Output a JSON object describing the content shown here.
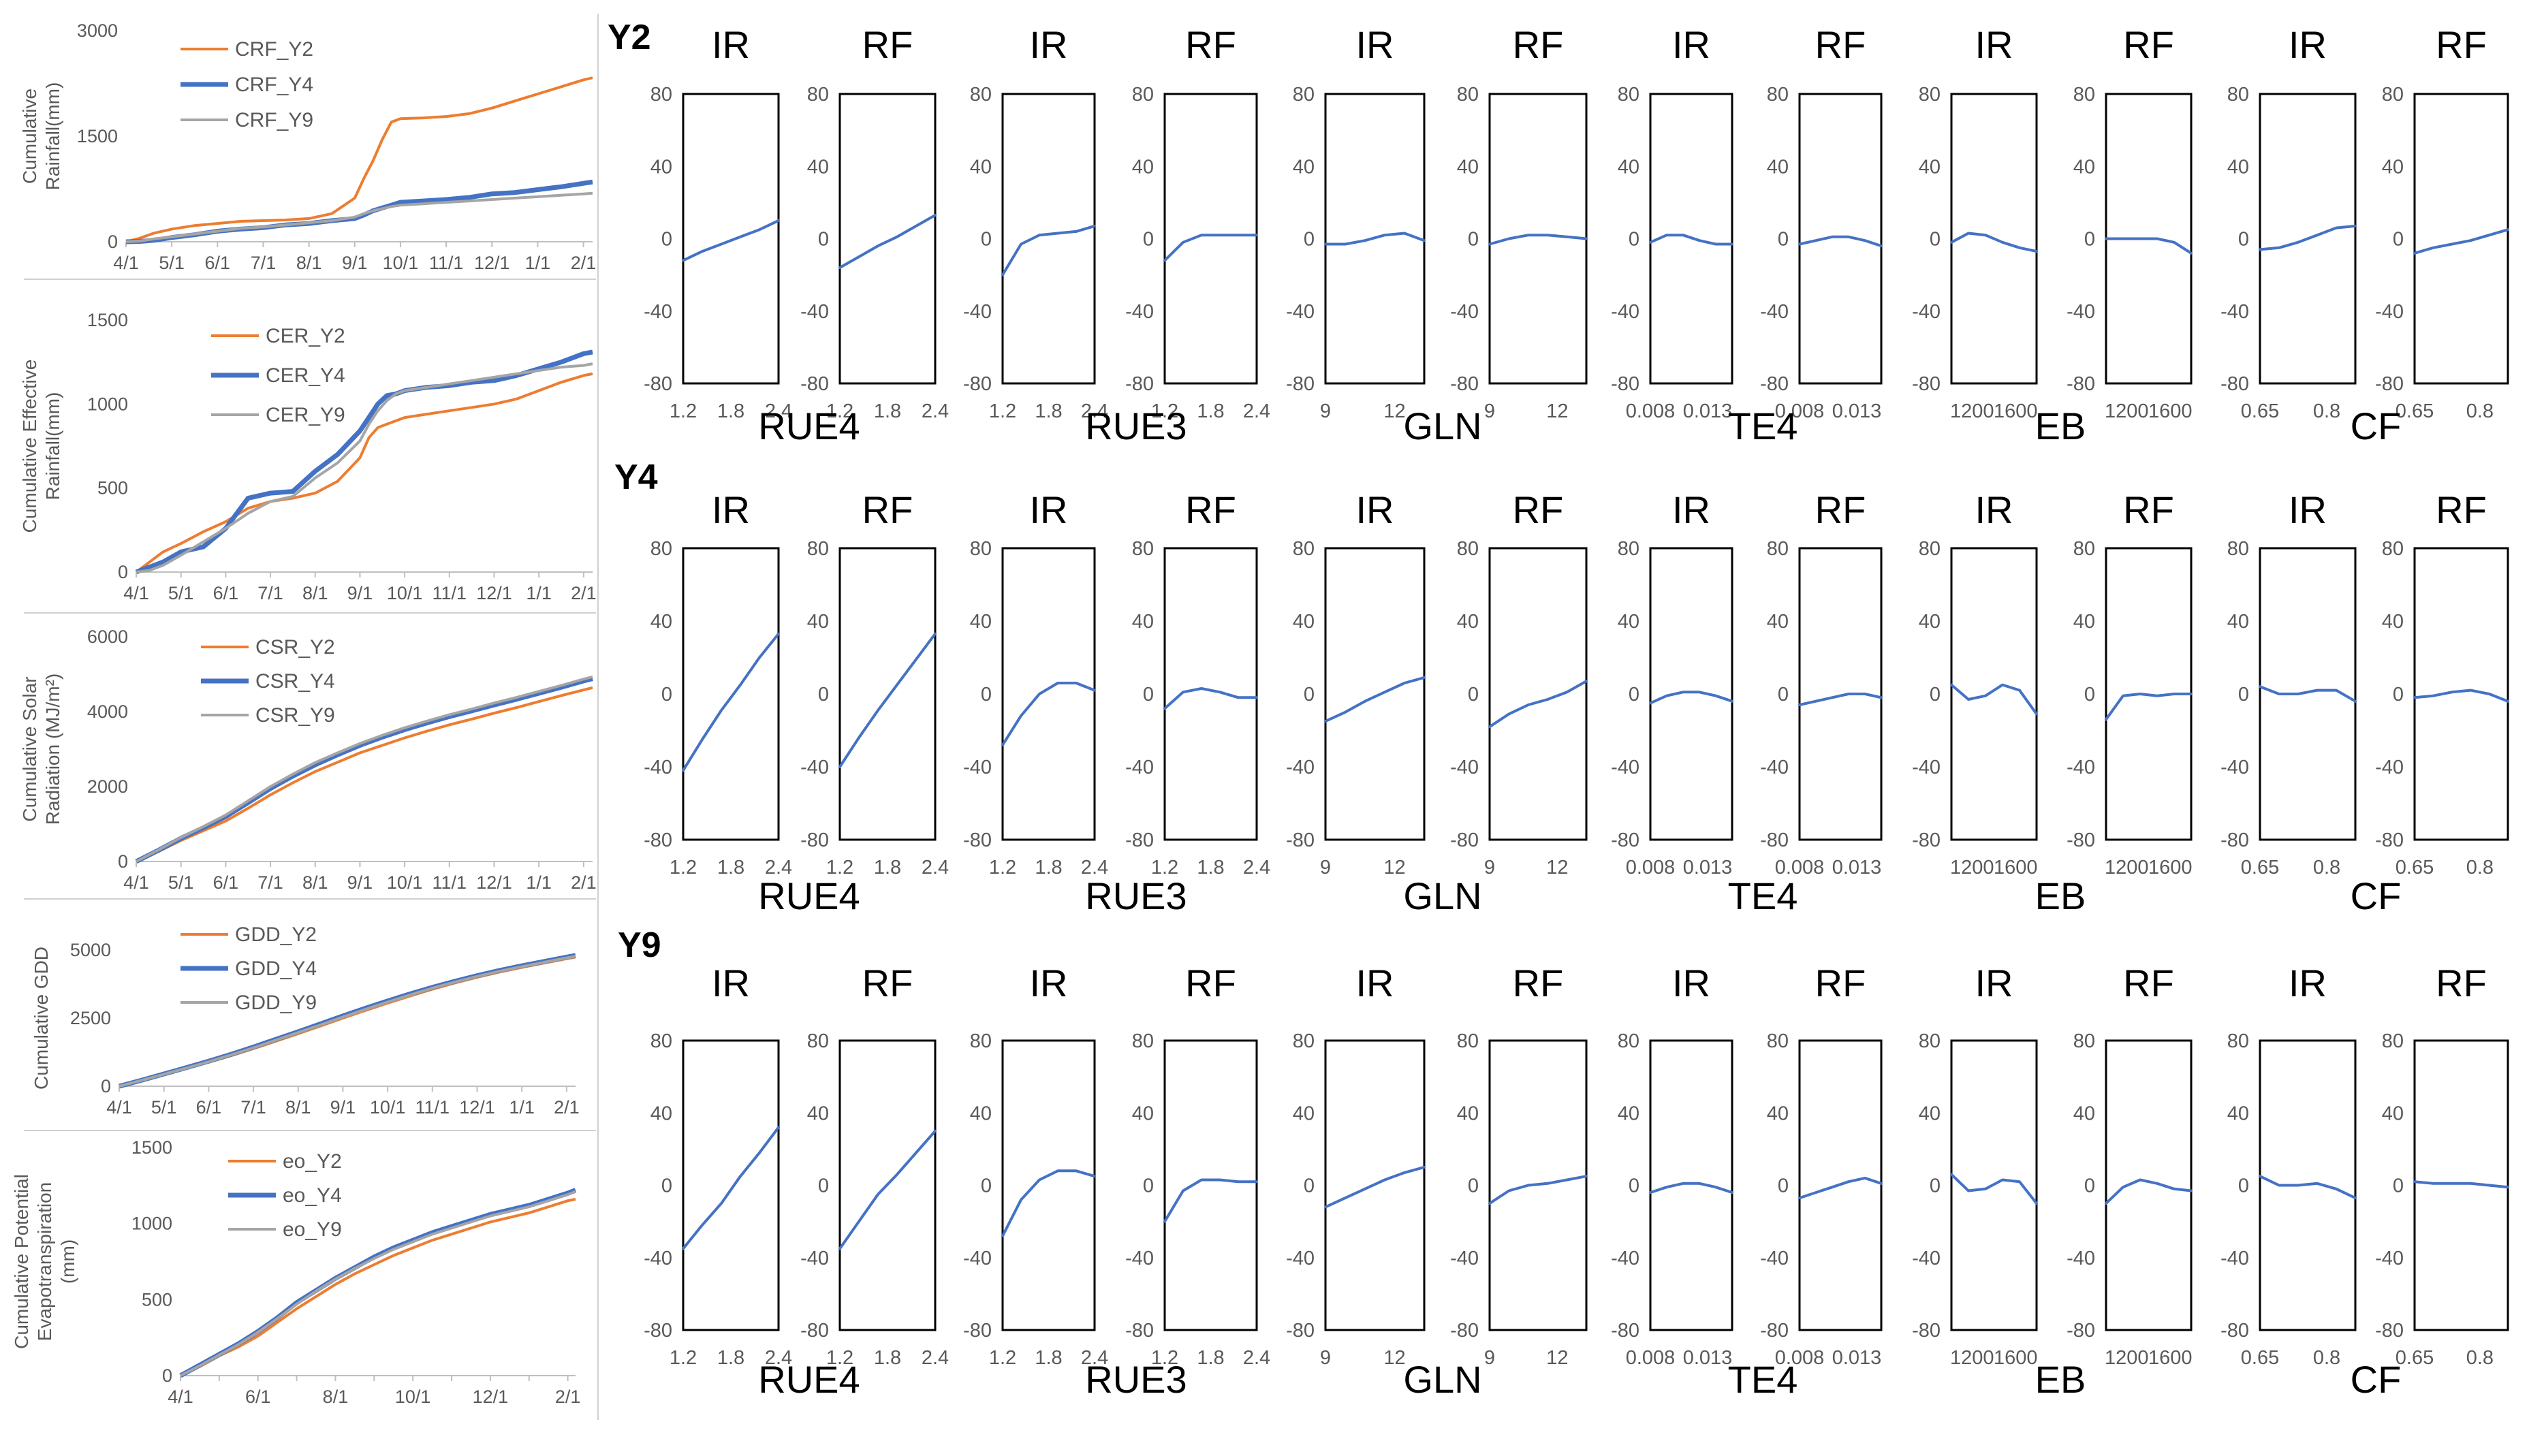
{
  "colors": {
    "y2": "#ED7D31",
    "y4": "#4472C4",
    "y9": "#A5A5A5",
    "curve": "#4472C4",
    "axis": "#595959",
    "frame": "#000000",
    "text": "#000000",
    "tick_text": "#595959"
  },
  "chart_data": {
    "left_panels": [
      {
        "type": "line",
        "ylabel": [
          "Cumulative",
          "Rainfall(mm)"
        ],
        "ylim": [
          0,
          3000
        ],
        "yticks": [
          "0",
          "1500",
          "3000"
        ],
        "xticks": [
          "4/1",
          "5/1",
          "6/1",
          "7/1",
          "8/1",
          "9/1",
          "10/1",
          "11/1",
          "12/1",
          "1/1",
          "2/1"
        ],
        "x": [
          0,
          0.3,
          0.6,
          1,
          1.5,
          2,
          2.5,
          3,
          3.5,
          4,
          4.5,
          5,
          5.2,
          5.4,
          5.6,
          5.8,
          6,
          6.5,
          7,
          7.5,
          8,
          8.5,
          9,
          9.5,
          10,
          10.2
        ],
        "series": [
          {
            "name": "CRF_Y2",
            "values": [
              0,
              50,
              120,
              180,
              230,
              260,
              290,
              300,
              310,
              330,
              400,
              620,
              900,
              1150,
              1450,
              1700,
              1750,
              1760,
              1780,
              1820,
              1900,
              2000,
              2100,
              2200,
              2300,
              2330
            ]
          },
          {
            "name": "CRF_Y4",
            "values": [
              0,
              5,
              20,
              60,
              100,
              150,
              180,
              200,
              240,
              260,
              300,
              330,
              380,
              440,
              480,
              520,
              560,
              580,
              600,
              630,
              680,
              700,
              740,
              780,
              830,
              850
            ]
          },
          {
            "name": "CRF_Y9",
            "values": [
              0,
              10,
              40,
              70,
              110,
              150,
              190,
              210,
              240,
              270,
              300,
              350,
              400,
              440,
              470,
              500,
              520,
              540,
              560,
              580,
              600,
              620,
              640,
              660,
              680,
              690
            ]
          }
        ]
      },
      {
        "type": "line",
        "ylabel": [
          "Cumulative Effective",
          "Rainfall(mm)"
        ],
        "ylim": [
          0,
          1500
        ],
        "yticks": [
          "0",
          "500",
          "1000",
          "1500"
        ],
        "xticks": [
          "4/1",
          "5/1",
          "6/1",
          "7/1",
          "8/1",
          "9/1",
          "10/1",
          "11/1",
          "12/1",
          "1/1",
          "2/1"
        ],
        "x": [
          0,
          0.3,
          0.6,
          1,
          1.5,
          2,
          2.5,
          3,
          3.5,
          4,
          4.5,
          5,
          5.2,
          5.4,
          5.6,
          5.8,
          6,
          6.5,
          7,
          7.5,
          8,
          8.5,
          9,
          9.5,
          10,
          10.2
        ],
        "series": [
          {
            "name": "CER_Y2",
            "values": [
              0,
              60,
              120,
              170,
              240,
              300,
              380,
              420,
              440,
              470,
              540,
              680,
              800,
              860,
              880,
              900,
              920,
              940,
              960,
              980,
              1000,
              1030,
              1080,
              1130,
              1170,
              1180
            ]
          },
          {
            "name": "CER_Y4",
            "values": [
              0,
              30,
              60,
              120,
              150,
              260,
              440,
              470,
              480,
              600,
              700,
              840,
              920,
              1000,
              1050,
              1060,
              1080,
              1100,
              1110,
              1130,
              1140,
              1170,
              1210,
              1250,
              1300,
              1310
            ]
          },
          {
            "name": "CER_Y9",
            "values": [
              0,
              10,
              40,
              100,
              180,
              260,
              350,
              420,
              450,
              560,
              650,
              780,
              880,
              960,
              1020,
              1060,
              1080,
              1100,
              1120,
              1140,
              1160,
              1180,
              1200,
              1220,
              1230,
              1240
            ]
          }
        ]
      },
      {
        "type": "line",
        "ylabel": [
          "Cumulative Solar",
          "Radiation (MJ/m²)"
        ],
        "ylim": [
          0,
          6000
        ],
        "yticks": [
          "0",
          "2000",
          "4000",
          "6000"
        ],
        "xticks": [
          "4/1",
          "5/1",
          "6/1",
          "7/1",
          "8/1",
          "9/1",
          "10/1",
          "11/1",
          "12/1",
          "1/1",
          "2/1"
        ],
        "x": [
          0,
          0.5,
          1,
          1.5,
          2,
          2.5,
          3,
          3.5,
          4,
          4.5,
          5,
          5.5,
          6,
          6.5,
          7,
          7.5,
          8,
          8.5,
          9,
          9.5,
          10,
          10.2
        ],
        "series": [
          {
            "name": "CSR_Y2",
            "values": [
              0,
              270,
              560,
              820,
              1080,
              1420,
              1780,
              2100,
              2400,
              2650,
              2900,
              3100,
              3300,
              3480,
              3650,
              3800,
              3960,
              4110,
              4270,
              4430,
              4580,
              4640
            ]
          },
          {
            "name": "CSR_Y4",
            "values": [
              0,
              300,
              620,
              900,
              1200,
              1570,
              1950,
              2280,
              2580,
              2850,
              3100,
              3320,
              3520,
              3700,
              3870,
              4020,
              4180,
              4330,
              4490,
              4650,
              4820,
              4880
            ]
          },
          {
            "name": "CSR_Y9",
            "values": [
              0,
              310,
              640,
              930,
              1240,
              1620,
              2000,
              2330,
              2640,
              2900,
              3150,
              3370,
              3570,
              3750,
              3920,
              4070,
              4230,
              4380,
              4540,
              4700,
              4870,
              4930
            ]
          }
        ]
      },
      {
        "type": "line",
        "ylabel": [
          "Cumulative GDD"
        ],
        "ylim": [
          0,
          5000
        ],
        "yticks": [
          "0",
          "2500",
          "5000"
        ],
        "xticks": [
          "4/1",
          "5/1",
          "6/1",
          "7/1",
          "8/1",
          "9/1",
          "10/1",
          "11/1",
          "12/1",
          "1/1",
          "2/1"
        ],
        "x": [
          0,
          0.5,
          1,
          1.5,
          2,
          2.5,
          3,
          3.5,
          4,
          4.5,
          5,
          5.5,
          6,
          6.5,
          7,
          7.5,
          8,
          8.5,
          9,
          9.5,
          10,
          10.2
        ],
        "series": [
          {
            "name": "GDD_Y2",
            "values": [
              0,
              210,
              430,
              650,
              880,
              1120,
              1380,
              1650,
              1930,
              2210,
              2500,
              2780,
              3050,
              3310,
              3560,
              3790,
              4000,
              4190,
              4360,
              4520,
              4680,
              4740
            ]
          },
          {
            "name": "GDD_Y4",
            "values": [
              0,
              220,
              450,
              680,
              920,
              1170,
              1440,
              1720,
              2000,
              2290,
              2580,
              2860,
              3130,
              3390,
              3630,
              3850,
              4060,
              4250,
              4420,
              4580,
              4740,
              4800
            ]
          },
          {
            "name": "GDD_Y9",
            "values": [
              0,
              215,
              440,
              665,
              900,
              1150,
              1410,
              1690,
              1970,
              2250,
              2540,
              2820,
              3090,
              3350,
              3600,
              3820,
              4030,
              4220,
              4390,
              4550,
              4710,
              4770
            ]
          }
        ]
      },
      {
        "type": "line",
        "ylabel": [
          "Cumulative Potential",
          "Evapotranspiration",
          "(mm)"
        ],
        "ylim": [
          0,
          1500
        ],
        "yticks": [
          "0",
          "500",
          "1000",
          "1500"
        ],
        "xticks": [
          "4/1",
          "6/1",
          "8/1",
          "10/1",
          "12/1",
          "2/1"
        ],
        "x": [
          0,
          0.5,
          1,
          1.5,
          2,
          2.5,
          3,
          3.5,
          4,
          4.5,
          5,
          5.5,
          6,
          6.5,
          7,
          7.5,
          8,
          8.5,
          9,
          9.5,
          10,
          10.2
        ],
        "series": [
          {
            "name": "eo_Y2",
            "values": [
              0,
              60,
              130,
              190,
              260,
              350,
              440,
              520,
              600,
              670,
              730,
              790,
              840,
              890,
              930,
              970,
              1010,
              1040,
              1070,
              1110,
              1150,
              1160
            ]
          },
          {
            "name": "eo_Y4",
            "values": [
              0,
              70,
              140,
              210,
              290,
              380,
              480,
              560,
              640,
              710,
              780,
              840,
              890,
              940,
              980,
              1020,
              1060,
              1090,
              1120,
              1160,
              1200,
              1220
            ]
          },
          {
            "name": "eo_Y9",
            "values": [
              0,
              65,
              135,
              205,
              285,
              375,
              470,
              555,
              635,
              705,
              770,
              830,
              880,
              930,
              970,
              1010,
              1050,
              1080,
              1110,
              1150,
              1190,
              1210
            ]
          }
        ]
      }
    ],
    "sensitivity": {
      "type": "line",
      "ylim": [
        -80,
        80
      ],
      "yticks": [
        "80",
        "40",
        "0",
        "-40",
        "-80"
      ],
      "subplot_titles": [
        "IR",
        "RF"
      ],
      "parameters": [
        {
          "name": "RUE4",
          "xticks": [
            "1.2",
            "1.8",
            "2.4"
          ]
        },
        {
          "name": "RUE3",
          "xticks": [
            "1.2",
            "1.8",
            "2.4"
          ]
        },
        {
          "name": "GLN",
          "xticks": [
            "9",
            "12"
          ]
        },
        {
          "name": "TE4",
          "xticks": [
            "0.008",
            "0.013"
          ]
        },
        {
          "name": "EB",
          "xticks": [
            "1200",
            "1600"
          ]
        },
        {
          "name": "CF",
          "xticks": [
            "0.65",
            "0.8"
          ]
        }
      ],
      "rows": [
        {
          "label": "Y2",
          "curves": [
            [
              -12,
              -7,
              -3,
              1,
              5,
              10
            ],
            [
              -16,
              -10,
              -4,
              1,
              7,
              13
            ],
            [
              -20,
              -3,
              2,
              3,
              4,
              7
            ],
            [
              -12,
              -2,
              2,
              2,
              2,
              2
            ],
            [
              -3,
              -3,
              -1,
              2,
              3,
              -1
            ],
            [
              -3,
              0,
              2,
              2,
              1,
              0
            ],
            [
              -2,
              2,
              2,
              -1,
              -3,
              -3
            ],
            [
              -3,
              -1,
              1,
              1,
              -1,
              -4
            ],
            [
              -2,
              3,
              2,
              -2,
              -5,
              -7
            ],
            [
              0,
              0,
              0,
              0,
              -2,
              -8
            ],
            [
              -6,
              -5,
              -2,
              2,
              6,
              7
            ],
            [
              -8,
              -5,
              -3,
              -1,
              2,
              5
            ]
          ]
        },
        {
          "label": "Y4",
          "curves": [
            [
              -42,
              -25,
              -9,
              5,
              20,
              33
            ],
            [
              -40,
              -24,
              -9,
              5,
              19,
              33
            ],
            [
              -28,
              -12,
              0,
              6,
              6,
              2
            ],
            [
              -8,
              1,
              3,
              1,
              -2,
              -2
            ],
            [
              -15,
              -10,
              -4,
              1,
              6,
              9
            ],
            [
              -18,
              -11,
              -6,
              -3,
              1,
              7
            ],
            [
              -5,
              -1,
              1,
              1,
              -1,
              -4
            ],
            [
              -6,
              -4,
              -2,
              0,
              0,
              -2
            ],
            [
              5,
              -3,
              -1,
              5,
              2,
              -11
            ],
            [
              -14,
              -1,
              0,
              -1,
              0,
              0
            ],
            [
              4,
              0,
              0,
              2,
              2,
              -4
            ],
            [
              -2,
              -1,
              1,
              2,
              0,
              -4
            ]
          ]
        },
        {
          "label": "Y9",
          "curves": [
            [
              -35,
              -22,
              -10,
              5,
              18,
              32
            ],
            [
              -35,
              -20,
              -5,
              6,
              18,
              30
            ],
            [
              -28,
              -8,
              3,
              8,
              8,
              5
            ],
            [
              -20,
              -3,
              3,
              3,
              2,
              2
            ],
            [
              -12,
              -7,
              -2,
              3,
              7,
              10
            ],
            [
              -10,
              -3,
              0,
              1,
              3,
              5
            ],
            [
              -4,
              -1,
              1,
              1,
              -1,
              -4
            ],
            [
              -7,
              -4,
              -1,
              2,
              4,
              1
            ],
            [
              6,
              -3,
              -2,
              3,
              2,
              -10
            ],
            [
              -10,
              -1,
              3,
              1,
              -2,
              -3
            ],
            [
              5,
              0,
              0,
              1,
              -2,
              -7
            ],
            [
              2,
              1,
              1,
              1,
              0,
              -1
            ]
          ]
        }
      ]
    }
  }
}
